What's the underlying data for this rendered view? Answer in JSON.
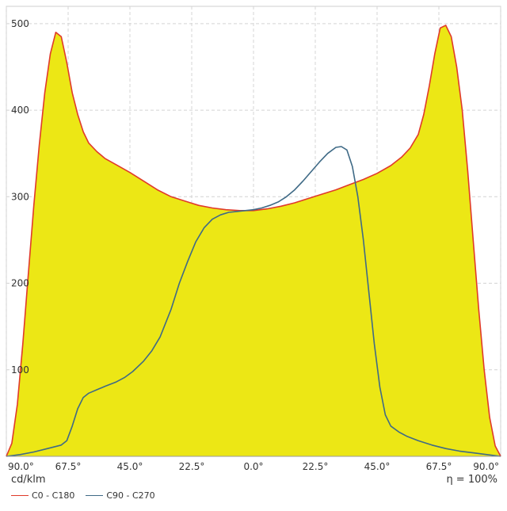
{
  "chart_data": {
    "type": "area",
    "xlabel": "",
    "ylabel": "cd/klm",
    "efficiency_text": "η = 100%",
    "x_tick_labels": [
      "90.0°",
      "67.5°",
      "45.0°",
      "22.5°",
      "0.0°",
      "22.5°",
      "45.0°",
      "67.5°",
      "90.0°"
    ],
    "x_tick_values": [
      -90,
      -67.5,
      -45,
      -22.5,
      0,
      22.5,
      45,
      67.5,
      90
    ],
    "y_ticks": [
      100,
      200,
      300,
      400,
      500
    ],
    "xlim": [
      -90,
      90
    ],
    "ylim": [
      0,
      520
    ],
    "grid": true,
    "legend_position": "bottom-left",
    "fill_color": "#ece715",
    "series": [
      {
        "name": "C0 - C180",
        "color": "#e03a2a",
        "filled": true,
        "points": [
          [
            -90,
            0
          ],
          [
            -88,
            15
          ],
          [
            -86,
            60
          ],
          [
            -84,
            130
          ],
          [
            -82,
            210
          ],
          [
            -80,
            290
          ],
          [
            -78,
            360
          ],
          [
            -76,
            420
          ],
          [
            -74,
            465
          ],
          [
            -72,
            490
          ],
          [
            -70,
            485
          ],
          [
            -68,
            455
          ],
          [
            -66,
            420
          ],
          [
            -64,
            395
          ],
          [
            -62,
            375
          ],
          [
            -60,
            362
          ],
          [
            -57,
            352
          ],
          [
            -54,
            344
          ],
          [
            -50,
            337
          ],
          [
            -45,
            328
          ],
          [
            -40,
            318
          ],
          [
            -35,
            308
          ],
          [
            -30,
            300
          ],
          [
            -25,
            295
          ],
          [
            -20,
            290
          ],
          [
            -15,
            287
          ],
          [
            -10,
            285
          ],
          [
            -5,
            284
          ],
          [
            0,
            284
          ],
          [
            5,
            286
          ],
          [
            10,
            289
          ],
          [
            15,
            293
          ],
          [
            20,
            298
          ],
          [
            25,
            303
          ],
          [
            30,
            308
          ],
          [
            35,
            314
          ],
          [
            40,
            320
          ],
          [
            45,
            327
          ],
          [
            50,
            336
          ],
          [
            54,
            346
          ],
          [
            57,
            356
          ],
          [
            60,
            372
          ],
          [
            62,
            395
          ],
          [
            64,
            428
          ],
          [
            66,
            465
          ],
          [
            68,
            495
          ],
          [
            70,
            498
          ],
          [
            72,
            485
          ],
          [
            74,
            450
          ],
          [
            76,
            400
          ],
          [
            78,
            330
          ],
          [
            80,
            250
          ],
          [
            82,
            170
          ],
          [
            84,
            100
          ],
          [
            86,
            45
          ],
          [
            88,
            12
          ],
          [
            90,
            0
          ]
        ]
      },
      {
        "name": "C90 - C270",
        "color": "#3f6a86",
        "filled": false,
        "points": [
          [
            -90,
            0
          ],
          [
            -85,
            2
          ],
          [
            -80,
            5
          ],
          [
            -75,
            9
          ],
          [
            -70,
            13
          ],
          [
            -68,
            18
          ],
          [
            -66,
            35
          ],
          [
            -64,
            55
          ],
          [
            -62,
            68
          ],
          [
            -60,
            73
          ],
          [
            -57,
            77
          ],
          [
            -54,
            81
          ],
          [
            -50,
            86
          ],
          [
            -47,
            91
          ],
          [
            -44,
            98
          ],
          [
            -40,
            110
          ],
          [
            -37,
            122
          ],
          [
            -34,
            138
          ],
          [
            -30,
            170
          ],
          [
            -27,
            200
          ],
          [
            -24,
            225
          ],
          [
            -21,
            248
          ],
          [
            -18,
            264
          ],
          [
            -15,
            274
          ],
          [
            -12,
            279
          ],
          [
            -9,
            282
          ],
          [
            -6,
            283
          ],
          [
            -3,
            284
          ],
          [
            0,
            285
          ],
          [
            3,
            287
          ],
          [
            6,
            290
          ],
          [
            9,
            294
          ],
          [
            12,
            300
          ],
          [
            15,
            308
          ],
          [
            18,
            318
          ],
          [
            21,
            329
          ],
          [
            24,
            340
          ],
          [
            27,
            350
          ],
          [
            30,
            357
          ],
          [
            32,
            358
          ],
          [
            34,
            354
          ],
          [
            36,
            335
          ],
          [
            38,
            300
          ],
          [
            40,
            250
          ],
          [
            42,
            190
          ],
          [
            44,
            130
          ],
          [
            46,
            80
          ],
          [
            48,
            48
          ],
          [
            50,
            35
          ],
          [
            53,
            28
          ],
          [
            56,
            23
          ],
          [
            60,
            18
          ],
          [
            65,
            13
          ],
          [
            70,
            9
          ],
          [
            75,
            6
          ],
          [
            80,
            4
          ],
          [
            85,
            2
          ],
          [
            90,
            0
          ]
        ]
      }
    ]
  }
}
